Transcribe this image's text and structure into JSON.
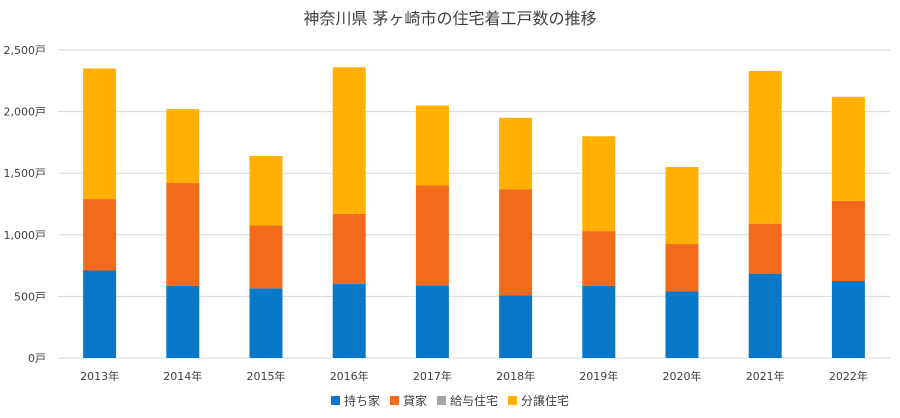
{
  "chart_data": {
    "type": "bar",
    "stacked": true,
    "title": "神奈川県 茅ヶ崎市の住宅着工戸数の推移",
    "categories": [
      "2013年",
      "2014年",
      "2015年",
      "2016年",
      "2017年",
      "2018年",
      "2019年",
      "2020年",
      "2021年",
      "2022年"
    ],
    "series": [
      {
        "name": "持ち家",
        "color": "#0a78c8",
        "values": [
          710,
          585,
          565,
          600,
          590,
          510,
          585,
          540,
          685,
          625
        ]
      },
      {
        "name": "貸家",
        "color": "#f26b1d",
        "values": [
          580,
          835,
          510,
          570,
          810,
          860,
          445,
          385,
          405,
          650
        ]
      },
      {
        "name": "給与住宅",
        "color": "#a5a5a5",
        "values": [
          0,
          0,
          0,
          0,
          0,
          0,
          0,
          0,
          0,
          0
        ]
      },
      {
        "name": "分譲住宅",
        "color": "#ffb000",
        "values": [
          1060,
          600,
          565,
          1190,
          650,
          580,
          770,
          625,
          1240,
          845
        ]
      }
    ],
    "ylim": [
      0,
      2500
    ],
    "yticks": [
      "0戸",
      "500戸",
      "1,000戸",
      "1,500戸",
      "2,000戸",
      "2,500戸"
    ],
    "ytick_values": [
      0,
      500,
      1000,
      1500,
      2000,
      2500
    ],
    "grid": true,
    "legend_position": "bottom",
    "xlabel": "",
    "ylabel": ""
  }
}
